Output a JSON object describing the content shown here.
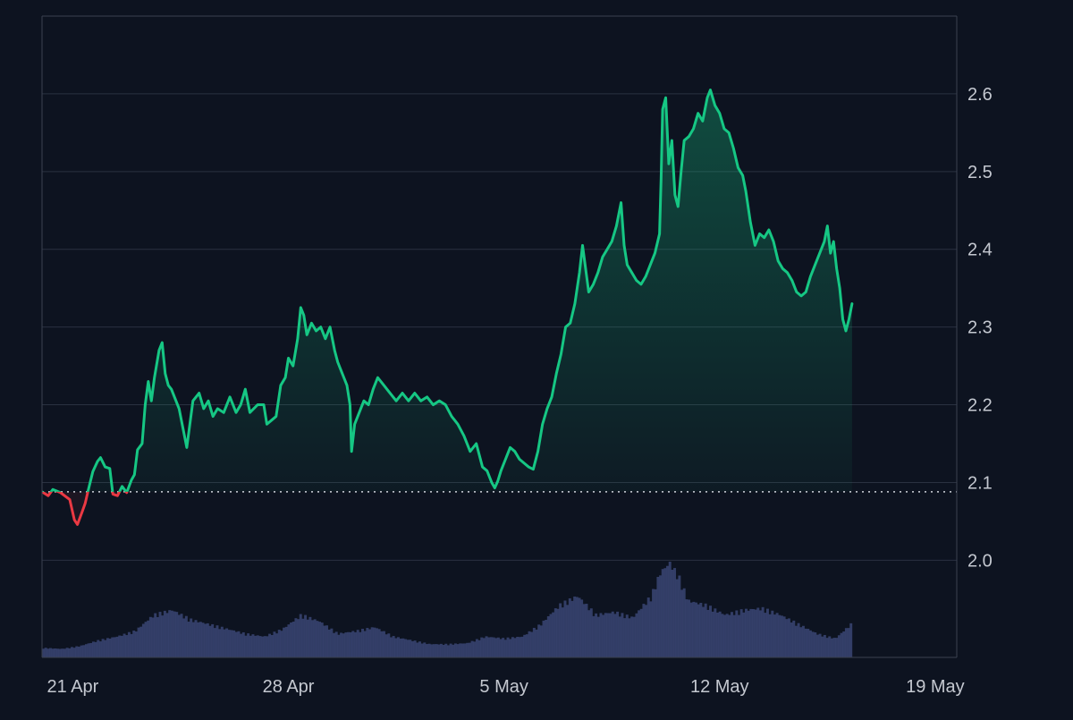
{
  "chart_data": {
    "type": "area",
    "title": "",
    "xlabel": "",
    "ylabel": "",
    "grid": true,
    "x_tick_labels": [
      {
        "label": "21 Apr",
        "x": 1.0
      },
      {
        "label": "28 Apr",
        "x": 8.0
      },
      {
        "label": "5 May",
        "x": 15.0
      },
      {
        "label": "12 May",
        "x": 22.0
      },
      {
        "label": "19 May",
        "x": 29.0
      }
    ],
    "y_ticks": [
      2.0,
      2.1,
      2.2,
      2.3,
      2.4,
      2.5,
      2.6
    ],
    "y_tick_labels": [
      "2.0",
      "2.1",
      "2.2",
      "2.3",
      "2.4",
      "2.5",
      "2.6"
    ],
    "xlim": [
      0.0,
      29.7
    ],
    "ylim": [
      1.875,
      2.7
    ],
    "baseline": 2.088,
    "colors": {
      "up": "#16c784",
      "down": "#ea3943",
      "volume": "#3a4573",
      "grid": "#2a3140",
      "axis_text": "#c4c8d0",
      "background": "#0d1320"
    },
    "series": [
      {
        "values": [
          [
            0.0,
            2.088
          ],
          [
            0.2,
            2.083
          ],
          [
            0.35,
            2.091
          ],
          [
            0.6,
            2.087
          ],
          [
            0.9,
            2.078
          ],
          [
            1.05,
            2.052
          ],
          [
            1.15,
            2.046
          ],
          [
            1.3,
            2.062
          ],
          [
            1.4,
            2.073
          ],
          [
            1.5,
            2.09
          ],
          [
            1.65,
            2.114
          ],
          [
            1.8,
            2.127
          ],
          [
            1.9,
            2.132
          ],
          [
            2.05,
            2.12
          ],
          [
            2.2,
            2.118
          ],
          [
            2.3,
            2.085
          ],
          [
            2.45,
            2.083
          ],
          [
            2.6,
            2.095
          ],
          [
            2.75,
            2.087
          ],
          [
            2.9,
            2.103
          ],
          [
            3.0,
            2.11
          ],
          [
            3.1,
            2.142
          ],
          [
            3.25,
            2.15
          ],
          [
            3.35,
            2.2
          ],
          [
            3.45,
            2.23
          ],
          [
            3.55,
            2.205
          ],
          [
            3.65,
            2.235
          ],
          [
            3.8,
            2.27
          ],
          [
            3.9,
            2.28
          ],
          [
            4.0,
            2.24
          ],
          [
            4.1,
            2.225
          ],
          [
            4.2,
            2.22
          ],
          [
            4.35,
            2.205
          ],
          [
            4.45,
            2.195
          ],
          [
            4.55,
            2.175
          ],
          [
            4.7,
            2.145
          ],
          [
            4.8,
            2.175
          ],
          [
            4.9,
            2.205
          ],
          [
            5.1,
            2.215
          ],
          [
            5.25,
            2.195
          ],
          [
            5.4,
            2.205
          ],
          [
            5.55,
            2.185
          ],
          [
            5.7,
            2.195
          ],
          [
            5.9,
            2.19
          ],
          [
            6.1,
            2.21
          ],
          [
            6.3,
            2.19
          ],
          [
            6.45,
            2.2
          ],
          [
            6.6,
            2.22
          ],
          [
            6.75,
            2.19
          ],
          [
            7.0,
            2.2
          ],
          [
            7.2,
            2.2
          ],
          [
            7.3,
            2.175
          ],
          [
            7.45,
            2.18
          ],
          [
            7.6,
            2.185
          ],
          [
            7.75,
            2.225
          ],
          [
            7.9,
            2.235
          ],
          [
            8.0,
            2.26
          ],
          [
            8.15,
            2.25
          ],
          [
            8.3,
            2.285
          ],
          [
            8.4,
            2.325
          ],
          [
            8.5,
            2.315
          ],
          [
            8.6,
            2.29
          ],
          [
            8.75,
            2.305
          ],
          [
            8.9,
            2.295
          ],
          [
            9.05,
            2.3
          ],
          [
            9.2,
            2.285
          ],
          [
            9.35,
            2.3
          ],
          [
            9.5,
            2.27
          ],
          [
            9.6,
            2.255
          ],
          [
            9.7,
            2.245
          ],
          [
            9.8,
            2.235
          ],
          [
            9.9,
            2.225
          ],
          [
            10.0,
            2.2
          ],
          [
            10.05,
            2.14
          ],
          [
            10.15,
            2.175
          ],
          [
            10.3,
            2.19
          ],
          [
            10.45,
            2.205
          ],
          [
            10.6,
            2.2
          ],
          [
            10.75,
            2.22
          ],
          [
            10.9,
            2.235
          ],
          [
            11.1,
            2.225
          ],
          [
            11.3,
            2.215
          ],
          [
            11.5,
            2.205
          ],
          [
            11.7,
            2.215
          ],
          [
            11.9,
            2.205
          ],
          [
            12.1,
            2.215
          ],
          [
            12.3,
            2.205
          ],
          [
            12.5,
            2.21
          ],
          [
            12.7,
            2.2
          ],
          [
            12.9,
            2.205
          ],
          [
            13.1,
            2.2
          ],
          [
            13.3,
            2.185
          ],
          [
            13.5,
            2.175
          ],
          [
            13.7,
            2.16
          ],
          [
            13.9,
            2.14
          ],
          [
            14.1,
            2.15
          ],
          [
            14.3,
            2.12
          ],
          [
            14.45,
            2.115
          ],
          [
            14.6,
            2.1
          ],
          [
            14.7,
            2.093
          ],
          [
            14.8,
            2.102
          ],
          [
            14.9,
            2.115
          ],
          [
            15.05,
            2.13
          ],
          [
            15.2,
            2.145
          ],
          [
            15.35,
            2.14
          ],
          [
            15.5,
            2.13
          ],
          [
            15.65,
            2.125
          ],
          [
            15.8,
            2.12
          ],
          [
            15.95,
            2.117
          ],
          [
            16.1,
            2.14
          ],
          [
            16.25,
            2.175
          ],
          [
            16.4,
            2.195
          ],
          [
            16.55,
            2.21
          ],
          [
            16.7,
            2.24
          ],
          [
            16.85,
            2.265
          ],
          [
            17.0,
            2.3
          ],
          [
            17.15,
            2.305
          ],
          [
            17.3,
            2.33
          ],
          [
            17.45,
            2.37
          ],
          [
            17.55,
            2.405
          ],
          [
            17.65,
            2.375
          ],
          [
            17.75,
            2.345
          ],
          [
            17.9,
            2.355
          ],
          [
            18.05,
            2.37
          ],
          [
            18.2,
            2.39
          ],
          [
            18.35,
            2.4
          ],
          [
            18.5,
            2.41
          ],
          [
            18.65,
            2.43
          ],
          [
            18.8,
            2.46
          ],
          [
            18.9,
            2.405
          ],
          [
            19.0,
            2.38
          ],
          [
            19.15,
            2.37
          ],
          [
            19.3,
            2.36
          ],
          [
            19.45,
            2.355
          ],
          [
            19.6,
            2.365
          ],
          [
            19.75,
            2.38
          ],
          [
            19.9,
            2.395
          ],
          [
            20.05,
            2.42
          ],
          [
            20.1,
            2.49
          ],
          [
            20.15,
            2.58
          ],
          [
            20.25,
            2.595
          ],
          [
            20.35,
            2.51
          ],
          [
            20.45,
            2.54
          ],
          [
            20.55,
            2.47
          ],
          [
            20.65,
            2.455
          ],
          [
            20.75,
            2.5
          ],
          [
            20.85,
            2.54
          ],
          [
            21.0,
            2.545
          ],
          [
            21.15,
            2.555
          ],
          [
            21.3,
            2.575
          ],
          [
            21.45,
            2.565
          ],
          [
            21.6,
            2.595
          ],
          [
            21.7,
            2.605
          ],
          [
            21.85,
            2.585
          ],
          [
            22.0,
            2.575
          ],
          [
            22.15,
            2.555
          ],
          [
            22.3,
            2.55
          ],
          [
            22.45,
            2.53
          ],
          [
            22.6,
            2.505
          ],
          [
            22.75,
            2.495
          ],
          [
            22.85,
            2.475
          ],
          [
            23.0,
            2.435
          ],
          [
            23.15,
            2.405
          ],
          [
            23.3,
            2.42
          ],
          [
            23.45,
            2.415
          ],
          [
            23.6,
            2.425
          ],
          [
            23.75,
            2.41
          ],
          [
            23.9,
            2.385
          ],
          [
            24.05,
            2.375
          ],
          [
            24.2,
            2.37
          ],
          [
            24.35,
            2.36
          ],
          [
            24.5,
            2.345
          ],
          [
            24.65,
            2.34
          ],
          [
            24.8,
            2.345
          ],
          [
            24.95,
            2.365
          ],
          [
            25.1,
            2.38
          ],
          [
            25.25,
            2.395
          ],
          [
            25.4,
            2.41
          ],
          [
            25.5,
            2.43
          ],
          [
            25.6,
            2.395
          ],
          [
            25.7,
            2.41
          ],
          [
            25.8,
            2.375
          ],
          [
            25.9,
            2.35
          ],
          [
            26.0,
            2.31
          ],
          [
            26.1,
            2.295
          ],
          [
            26.2,
            2.31
          ],
          [
            26.3,
            2.33
          ]
        ]
      }
    ],
    "volume": {
      "x": [
        0.0,
        0.6,
        1.2,
        1.8,
        2.4,
        3.0,
        3.6,
        4.2,
        4.8,
        5.4,
        6.0,
        6.6,
        7.2,
        7.8,
        8.4,
        9.0,
        9.6,
        10.2,
        10.8,
        11.4,
        12.0,
        12.6,
        13.2,
        13.8,
        14.4,
        15.0,
        15.6,
        16.2,
        16.8,
        17.4,
        18.0,
        18.6,
        19.2,
        19.8,
        20.1,
        20.4,
        20.7,
        21.0,
        21.6,
        22.2,
        22.8,
        23.4,
        24.0,
        24.6,
        25.2,
        25.8,
        26.3
      ],
      "values": [
        0.1,
        0.09,
        0.12,
        0.18,
        0.22,
        0.28,
        0.45,
        0.5,
        0.4,
        0.35,
        0.3,
        0.25,
        0.22,
        0.3,
        0.45,
        0.38,
        0.25,
        0.28,
        0.32,
        0.22,
        0.18,
        0.14,
        0.14,
        0.15,
        0.22,
        0.2,
        0.22,
        0.35,
        0.55,
        0.65,
        0.45,
        0.48,
        0.42,
        0.65,
        0.9,
        1.0,
        0.85,
        0.6,
        0.55,
        0.45,
        0.5,
        0.52,
        0.45,
        0.35,
        0.25,
        0.2,
        0.35
      ]
    }
  }
}
